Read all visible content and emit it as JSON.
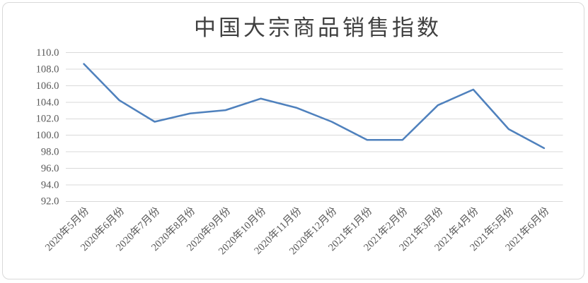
{
  "chart": {
    "title": "中国大宗商品销售指数"
  },
  "chart_data": {
    "type": "line",
    "title": "中国大宗商品销售指数",
    "categories": [
      "2020年5月份",
      "2020年6月份",
      "2020年7月份",
      "2020年8月份",
      "2020年9月份",
      "2020年10月份",
      "2020年11月份",
      "2020年12月份",
      "2021年1月份",
      "2021年2月份",
      "2021年3月份",
      "2021年4月份",
      "2021年5月份",
      "2021年6月份"
    ],
    "values": [
      108.6,
      104.2,
      101.6,
      102.6,
      103.0,
      104.4,
      103.3,
      101.6,
      99.4,
      99.4,
      103.6,
      105.5,
      100.7,
      98.4
    ],
    "xlabel": "",
    "ylabel": "",
    "ylim": [
      92,
      110
    ],
    "ytick_step": 2,
    "yticks": [
      92,
      94,
      96,
      98,
      100,
      102,
      104,
      106,
      108,
      110
    ],
    "ytick_labels": [
      "92.0",
      "94.0",
      "96.0",
      "98.0",
      "100.0",
      "102.0",
      "104.0",
      "106.0",
      "108.0",
      "110.0"
    ],
    "x_label_rotation": -45,
    "grid": true,
    "legend": "none",
    "colors": {
      "line": "#4F81BD",
      "grid": "#d9d9d9",
      "axis_label": "#595959",
      "title": "#404040"
    }
  }
}
